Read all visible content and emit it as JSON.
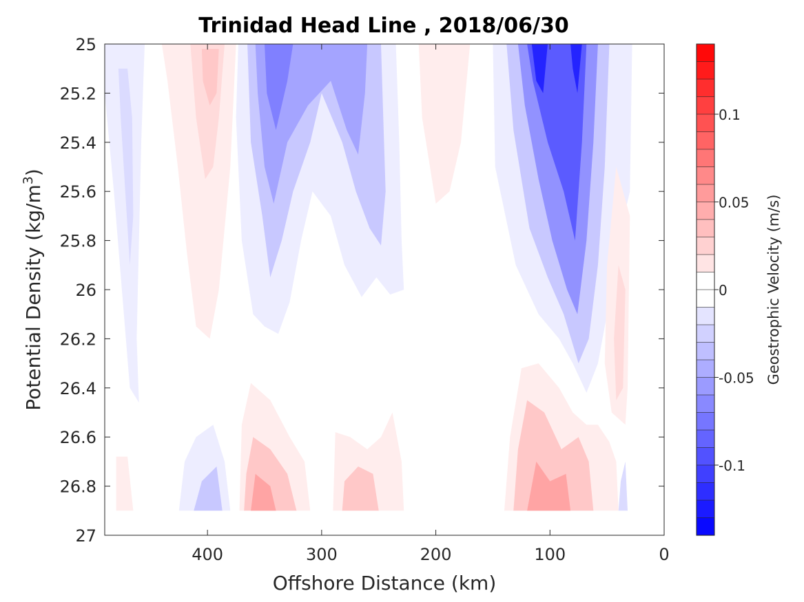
{
  "chart_data": {
    "type": "contour",
    "title": "Trinidad Head Line , 2018/06/30",
    "xlabel": "Offshore Distance (km)",
    "ylabel": "Potential Density (kg/m",
    "ylabel_sup": "3",
    "ylabel_close": ")",
    "xlim": [
      490,
      0
    ],
    "ylim": [
      25,
      27
    ],
    "x_reversed": true,
    "y_reversed": true,
    "x_ticks": [
      400,
      300,
      200,
      100,
      0
    ],
    "x_tick_labels": [
      "400",
      "300",
      "200",
      "100",
      "0"
    ],
    "y_ticks": [
      25,
      25.2,
      25.4,
      25.6,
      25.8,
      26,
      26.2,
      26.4,
      26.6,
      26.8,
      27
    ],
    "y_tick_labels": [
      "25",
      "25.2",
      "25.4",
      "25.6",
      "25.8",
      "26",
      "26.2",
      "26.4",
      "26.6",
      "26.8",
      "27"
    ],
    "grid": false,
    "colorbar": {
      "label": "Geostrophic Velocity (m/s)",
      "min": -0.14,
      "max": 0.14,
      "levels": 28,
      "ticks": [
        0.1,
        0.05,
        0,
        -0.05,
        -0.1
      ],
      "tick_labels": [
        "0.1",
        "0.05",
        "0",
        "-0.05",
        "-0.1"
      ],
      "neg_color": "#0000ff",
      "pos_color": "#ff0000",
      "zero_color": "#ffffff"
    },
    "features": [
      {
        "level": -0.01,
        "polygon": [
          [
            485,
            25
          ],
          [
            455,
            25
          ],
          [
            458,
            25.4
          ],
          [
            460,
            25.8
          ],
          [
            462,
            26.2
          ],
          [
            460,
            26.46
          ],
          [
            468,
            26.4
          ],
          [
            475,
            26
          ],
          [
            482,
            25.6
          ],
          [
            490,
            25.2
          ],
          [
            490,
            25
          ]
        ]
      },
      {
        "level": -0.02,
        "polygon": [
          [
            478,
            25.1
          ],
          [
            470,
            25.1
          ],
          [
            466,
            25.3
          ],
          [
            465,
            25.7
          ],
          [
            468,
            25.9
          ],
          [
            472,
            25.6
          ],
          [
            476,
            25.3
          ]
        ]
      },
      {
        "level": 0.01,
        "polygon": [
          [
            440,
            25
          ],
          [
            375,
            25
          ],
          [
            380,
            25.5
          ],
          [
            390,
            26
          ],
          [
            398,
            26.2
          ],
          [
            410,
            26.15
          ],
          [
            418,
            25.85
          ],
          [
            426,
            25.5
          ],
          [
            435,
            25.15
          ]
        ]
      },
      {
        "level": 0.02,
        "polygon": [
          [
            415,
            25
          ],
          [
            385,
            25
          ],
          [
            390,
            25.3
          ],
          [
            395,
            25.5
          ],
          [
            402,
            25.55
          ],
          [
            410,
            25.3
          ]
        ]
      },
      {
        "level": 0.03,
        "polygon": [
          [
            405,
            25.02
          ],
          [
            390,
            25.02
          ],
          [
            392,
            25.2
          ],
          [
            398,
            25.25
          ],
          [
            404,
            25.15
          ]
        ]
      },
      {
        "level": -0.01,
        "polygon": [
          [
            373,
            25
          ],
          [
            235,
            25
          ],
          [
            232,
            25.4
          ],
          [
            230,
            25.8
          ],
          [
            228,
            26
          ],
          [
            240,
            26.02
          ],
          [
            252,
            25.95
          ],
          [
            265,
            26.03
          ],
          [
            280,
            25.9
          ],
          [
            292,
            25.7
          ],
          [
            308,
            25.6
          ],
          [
            318,
            25.8
          ],
          [
            328,
            26.05
          ],
          [
            338,
            26.18
          ],
          [
            350,
            26.15
          ],
          [
            360,
            26.1
          ],
          [
            370,
            25.8
          ],
          [
            375,
            25.3
          ]
        ]
      },
      {
        "level": -0.03,
        "polygon": [
          [
            365,
            25
          ],
          [
            248,
            25
          ],
          [
            246,
            25.3
          ],
          [
            244,
            25.6
          ],
          [
            248,
            25.82
          ],
          [
            258,
            25.75
          ],
          [
            270,
            25.6
          ],
          [
            282,
            25.4
          ],
          [
            300,
            25.2
          ],
          [
            310,
            25.4
          ],
          [
            325,
            25.6
          ],
          [
            335,
            25.8
          ],
          [
            345,
            25.95
          ],
          [
            352,
            25.7
          ],
          [
            362,
            25.4
          ]
        ]
      },
      {
        "level": -0.05,
        "polygon": [
          [
            358,
            25
          ],
          [
            260,
            25
          ],
          [
            262,
            25.2
          ],
          [
            268,
            25.45
          ],
          [
            278,
            25.35
          ],
          [
            292,
            25.15
          ],
          [
            312,
            25.25
          ],
          [
            330,
            25.4
          ],
          [
            342,
            25.65
          ],
          [
            350,
            25.5
          ],
          [
            356,
            25.2
          ]
        ]
      },
      {
        "level": -0.07,
        "polygon": [
          [
            350,
            25
          ],
          [
            325,
            25
          ],
          [
            330,
            25.15
          ],
          [
            340,
            25.35
          ],
          [
            348,
            25.2
          ]
        ]
      },
      {
        "level": 0.01,
        "polygon": [
          [
            215,
            25
          ],
          [
            170,
            25
          ],
          [
            178,
            25.4
          ],
          [
            188,
            25.6
          ],
          [
            200,
            25.65
          ],
          [
            212,
            25.3
          ]
        ]
      },
      {
        "level": -0.01,
        "polygon": [
          [
            150,
            25
          ],
          [
            28,
            25
          ],
          [
            30,
            25.6
          ],
          [
            40,
            25.8
          ],
          [
            50,
            26.1
          ],
          [
            58,
            26.3
          ],
          [
            68,
            26.42
          ],
          [
            80,
            26.3
          ],
          [
            92,
            26.2
          ],
          [
            110,
            26.1
          ],
          [
            130,
            25.9
          ],
          [
            148,
            25.5
          ]
        ]
      },
      {
        "level": -0.03,
        "polygon": [
          [
            138,
            25
          ],
          [
            48,
            25
          ],
          [
            52,
            25.5
          ],
          [
            58,
            25.9
          ],
          [
            66,
            26.2
          ],
          [
            75,
            26.3
          ],
          [
            88,
            26.1
          ],
          [
            102,
            25.95
          ],
          [
            118,
            25.75
          ],
          [
            132,
            25.35
          ]
        ]
      },
      {
        "level": -0.06,
        "polygon": [
          [
            128,
            25
          ],
          [
            58,
            25
          ],
          [
            62,
            25.4
          ],
          [
            68,
            25.8
          ],
          [
            76,
            26.1
          ],
          [
            85,
            26
          ],
          [
            98,
            25.8
          ],
          [
            110,
            25.55
          ],
          [
            122,
            25.25
          ]
        ]
      },
      {
        "level": -0.09,
        "polygon": [
          [
            120,
            25
          ],
          [
            68,
            25
          ],
          [
            72,
            25.4
          ],
          [
            78,
            25.8
          ],
          [
            88,
            25.6
          ],
          [
            102,
            25.4
          ],
          [
            115,
            25.15
          ]
        ]
      },
      {
        "level": -0.12,
        "polygon": [
          [
            116,
            25
          ],
          [
            102,
            25
          ],
          [
            106,
            25.2
          ],
          [
            112,
            25.15
          ]
        ]
      },
      {
        "level": -0.12,
        "polygon": [
          [
            82,
            25
          ],
          [
            72,
            25
          ],
          [
            76,
            25.2
          ],
          [
            80,
            25.1
          ]
        ]
      },
      {
        "level": 0.01,
        "polygon": [
          [
            42,
            25.5
          ],
          [
            30,
            25.7
          ],
          [
            32,
            26.4
          ],
          [
            34,
            26.55
          ],
          [
            46,
            26.5
          ],
          [
            52,
            26.3
          ],
          [
            50,
            25.9
          ]
        ]
      },
      {
        "level": 0.02,
        "polygon": [
          [
            40,
            25.9
          ],
          [
            34,
            26
          ],
          [
            36,
            26.4
          ],
          [
            42,
            26.45
          ],
          [
            44,
            26.2
          ]
        ]
      },
      {
        "level": 0.01,
        "polygon": [
          [
            480,
            26.68
          ],
          [
            470,
            26.68
          ],
          [
            465,
            26.9
          ],
          [
            480,
            26.9
          ]
        ]
      },
      {
        "level": -0.01,
        "polygon": [
          [
            425,
            26.9
          ],
          [
            380,
            26.9
          ],
          [
            385,
            26.7
          ],
          [
            395,
            26.55
          ],
          [
            410,
            26.6
          ],
          [
            420,
            26.7
          ]
        ]
      },
      {
        "level": -0.03,
        "polygon": [
          [
            412,
            26.9
          ],
          [
            387,
            26.9
          ],
          [
            392,
            26.72
          ],
          [
            405,
            26.78
          ]
        ]
      },
      {
        "level": 0.01,
        "polygon": [
          [
            372,
            26.9
          ],
          [
            310,
            26.9
          ],
          [
            315,
            26.7
          ],
          [
            328,
            26.6
          ],
          [
            345,
            26.45
          ],
          [
            362,
            26.38
          ],
          [
            370,
            26.55
          ]
        ]
      },
      {
        "level": 0.03,
        "polygon": [
          [
            368,
            26.9
          ],
          [
            322,
            26.9
          ],
          [
            330,
            26.75
          ],
          [
            345,
            26.65
          ],
          [
            360,
            26.6
          ],
          [
            366,
            26.75
          ]
        ]
      },
      {
        "level": 0.05,
        "polygon": [
          [
            362,
            26.9
          ],
          [
            340,
            26.9
          ],
          [
            345,
            26.8
          ],
          [
            358,
            26.75
          ]
        ]
      },
      {
        "level": 0.01,
        "polygon": [
          [
            290,
            26.9
          ],
          [
            228,
            26.9
          ],
          [
            230,
            26.7
          ],
          [
            238,
            26.5
          ],
          [
            248,
            26.6
          ],
          [
            260,
            26.65
          ],
          [
            275,
            26.6
          ],
          [
            288,
            26.58
          ]
        ]
      },
      {
        "level": 0.03,
        "polygon": [
          [
            282,
            26.9
          ],
          [
            250,
            26.9
          ],
          [
            255,
            26.75
          ],
          [
            268,
            26.72
          ],
          [
            280,
            26.78
          ]
        ]
      },
      {
        "level": 0.01,
        "polygon": [
          [
            140,
            26.9
          ],
          [
            40,
            26.9
          ],
          [
            42,
            26.7
          ],
          [
            48,
            26.62
          ],
          [
            58,
            26.55
          ],
          [
            68,
            26.55
          ],
          [
            80,
            26.5
          ],
          [
            92,
            26.4
          ],
          [
            110,
            26.3
          ],
          [
            125,
            26.32
          ],
          [
            135,
            26.6
          ]
        ]
      },
      {
        "level": 0.03,
        "polygon": [
          [
            132,
            26.9
          ],
          [
            62,
            26.9
          ],
          [
            66,
            26.7
          ],
          [
            75,
            26.6
          ],
          [
            90,
            26.65
          ],
          [
            105,
            26.5
          ],
          [
            120,
            26.45
          ],
          [
            128,
            26.65
          ]
        ]
      },
      {
        "level": 0.05,
        "polygon": [
          [
            120,
            26.9
          ],
          [
            82,
            26.9
          ],
          [
            86,
            26.75
          ],
          [
            100,
            26.78
          ],
          [
            112,
            26.7
          ]
        ]
      },
      {
        "level": -0.02,
        "polygon": [
          [
            40,
            26.9
          ],
          [
            32,
            26.9
          ],
          [
            34,
            26.7
          ],
          [
            38,
            26.78
          ]
        ]
      }
    ]
  }
}
